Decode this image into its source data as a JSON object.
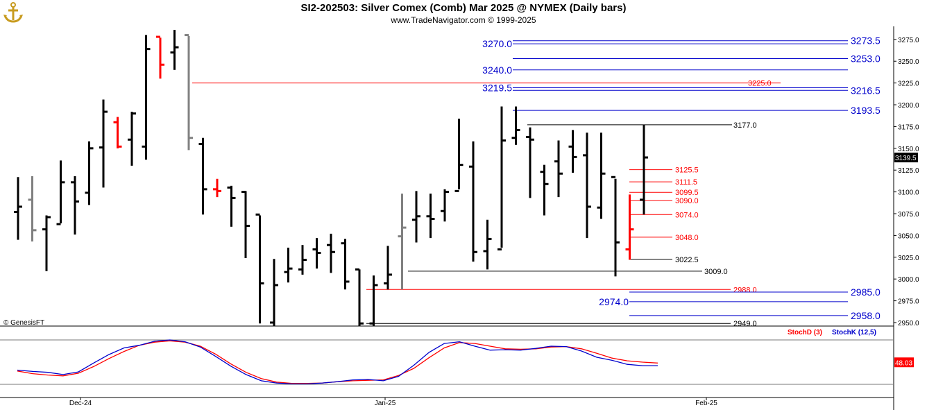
{
  "header": {
    "title": "SI2-202503:  Silver Comex (Comb) Mar 2025 @ NYMEX  (Daily bars)",
    "subtitle": "www.TradeNavigator.com © 1999-2025",
    "watermark": "© GenesisFT"
  },
  "colors": {
    "up": "#000000",
    "down": "#ff0000",
    "flat": "#808080",
    "green": "#00dd00",
    "blue": "#0000cc",
    "red": "#ff0000",
    "black": "#000000"
  },
  "chart_data": {
    "type": "bar",
    "price_axis": {
      "ticks": [
        "3275.0",
        "3250.0",
        "3225.0",
        "3200.0",
        "3175.0",
        "3150.0",
        "3125.0",
        "3100.0",
        "3075.0",
        "3050.0",
        "3025.0",
        "3000.0",
        "2975.0",
        "2950.0"
      ],
      "last_price": "3139.5"
    },
    "date_labels": [
      "Dec-24",
      "Jan-25",
      "Feb-25"
    ],
    "bars": [
      {
        "o": 3077,
        "h": 3117,
        "l": 3045,
        "c": 3083,
        "color": "black",
        "dir": "up"
      },
      {
        "o": 3091,
        "h": 3118,
        "l": 3043,
        "c": 3056,
        "color": "gray",
        "dir": "down"
      },
      {
        "o": 3057,
        "h": 3073,
        "l": 3009,
        "c": 3071,
        "color": "black",
        "dir": "up"
      },
      {
        "o": 3063,
        "h": 3136,
        "l": 3064,
        "c": 3111,
        "color": "black",
        "dir": "up"
      },
      {
        "o": 3111,
        "h": 3118,
        "l": 3051,
        "c": 3089,
        "color": "black",
        "dir": "down"
      },
      {
        "o": 3099,
        "h": 3158,
        "l": 3085,
        "c": 3150,
        "color": "black",
        "dir": "up"
      },
      {
        "o": 3151,
        "h": 3206,
        "l": 3105,
        "c": 3192,
        "color": "black",
        "dir": "up"
      },
      {
        "o": 3180,
        "h": 3186,
        "l": 3150,
        "c": 3152,
        "color": "red",
        "dir": "down"
      },
      {
        "o": 3160,
        "h": 3192,
        "l": 3130,
        "c": 3190,
        "color": "black",
        "dir": "up"
      },
      {
        "o": 3152,
        "h": 3280,
        "l": 3137,
        "c": 3264,
        "color": "black",
        "dir": "up"
      },
      {
        "o": 3278,
        "h": 3277,
        "l": 3230,
        "c": 3246,
        "color": "red",
        "dir": "down"
      },
      {
        "o": 3260,
        "h": 3286,
        "l": 3240,
        "c": 3266,
        "color": "black",
        "dir": "up"
      },
      {
        "o": 3280,
        "h": 3279,
        "l": 3148,
        "c": 3162,
        "color": "gray",
        "dir": "down"
      },
      {
        "o": 3155,
        "h": 3162,
        "l": 3074,
        "c": 3103,
        "color": "black",
        "dir": "down"
      },
      {
        "o": 3103,
        "h": 3115,
        "l": 3094,
        "c": 3101,
        "color": "red",
        "dir": "down"
      },
      {
        "o": 3105,
        "h": 3107,
        "l": 3060,
        "c": 3093,
        "color": "black",
        "dir": "down"
      },
      {
        "o": 3100,
        "h": 3101,
        "l": 3024,
        "c": 3061,
        "color": "black",
        "dir": "down"
      },
      {
        "o": 3074,
        "h": 3073,
        "l": 2949,
        "c": 2995,
        "color": "black",
        "dir": "down"
      },
      {
        "o": 2950,
        "h": 3023,
        "l": 2944,
        "c": 2993,
        "color": "black",
        "dir": "up"
      },
      {
        "o": 3008,
        "h": 3036,
        "l": 2996,
        "c": 3012,
        "color": "black",
        "dir": "up"
      },
      {
        "o": 3011,
        "h": 3039,
        "l": 3005,
        "c": 3022,
        "color": "black",
        "dir": "up"
      },
      {
        "o": 3034,
        "h": 3047,
        "l": 3012,
        "c": 3030,
        "color": "black",
        "dir": "up"
      },
      {
        "o": 3039,
        "h": 3052,
        "l": 3007,
        "c": 3031,
        "color": "black",
        "dir": "up"
      },
      {
        "o": 3041,
        "h": 3046,
        "l": 2988,
        "c": 2997,
        "color": "black",
        "dir": "down"
      },
      {
        "o": 3011,
        "h": 3011,
        "l": 2943,
        "c": 2949,
        "color": "black",
        "dir": "down"
      },
      {
        "o": 2949,
        "h": 3004,
        "l": 2940,
        "c": 2993,
        "color": "black",
        "dir": "up"
      },
      {
        "o": 2995,
        "h": 3038,
        "l": 2988,
        "c": 3005,
        "color": "black",
        "dir": "up"
      },
      {
        "o": 3049,
        "h": 3098,
        "l": 2988,
        "c": 3059,
        "color": "gray",
        "dir": "up"
      },
      {
        "o": 3068,
        "h": 3101,
        "l": 3042,
        "c": 3072,
        "color": "black",
        "dir": "up"
      },
      {
        "o": 3072,
        "h": 3098,
        "l": 3047,
        "c": 3069,
        "color": "black",
        "dir": "up"
      },
      {
        "o": 3078,
        "h": 3103,
        "l": 3066,
        "c": 3100,
        "color": "black",
        "dir": "up"
      },
      {
        "o": 3101,
        "h": 3184,
        "l": 3103,
        "c": 3131,
        "color": "black",
        "dir": "up"
      },
      {
        "o": 3129,
        "h": 3158,
        "l": 3020,
        "c": 3031,
        "color": "black",
        "dir": "down"
      },
      {
        "o": 3032,
        "h": 3068,
        "l": 3011,
        "c": 3046,
        "color": "black",
        "dir": "up"
      },
      {
        "o": 3034,
        "h": 3198,
        "l": 3036,
        "c": 3159,
        "color": "black",
        "dir": "up"
      },
      {
        "o": 3162,
        "h": 3198,
        "l": 3154,
        "c": 3171,
        "color": "black",
        "dir": "up"
      },
      {
        "o": 3163,
        "h": 3174,
        "l": 3093,
        "c": 3160,
        "color": "black",
        "dir": "down"
      },
      {
        "o": 3123,
        "h": 3131,
        "l": 3073,
        "c": 3109,
        "color": "black",
        "dir": "down"
      },
      {
        "o": 3135,
        "h": 3159,
        "l": 3094,
        "c": 3121,
        "color": "black",
        "dir": "down"
      },
      {
        "o": 3152,
        "h": 3171,
        "l": 3122,
        "c": 3140,
        "color": "black",
        "dir": "down"
      },
      {
        "o": 3142,
        "h": 3168,
        "l": 3047,
        "c": 3083,
        "color": "black",
        "dir": "down"
      },
      {
        "o": 3082,
        "h": 3168,
        "l": 3069,
        "c": 3121,
        "color": "black",
        "dir": "up"
      },
      {
        "o": 3117,
        "h": 3115,
        "l": 3003,
        "c": 3042,
        "color": "black",
        "dir": "down"
      },
      {
        "o": 3034,
        "h": 3097,
        "l": 3022,
        "c": 3057,
        "color": "red",
        "dir": "up"
      },
      {
        "o": 3091,
        "h": 3177,
        "l": 3074,
        "c": 3139.5,
        "color": "black",
        "dir": "up"
      }
    ],
    "levels": [
      {
        "value": "3273.5",
        "color": "blue",
        "side": "right"
      },
      {
        "value": "3270.0",
        "color": "blue",
        "side": "left"
      },
      {
        "value": "3253.0",
        "color": "blue",
        "side": "right"
      },
      {
        "value": "3240.0",
        "color": "blue",
        "side": "left"
      },
      {
        "value": "3225.0",
        "color": "red",
        "side": "mid"
      },
      {
        "value": "3219.5",
        "color": "blue",
        "side": "left"
      },
      {
        "value": "3216.5",
        "color": "blue",
        "side": "right"
      },
      {
        "value": "3193.5",
        "color": "blue",
        "side": "right"
      },
      {
        "value": "3177.0",
        "color": "black",
        "side": "mid"
      },
      {
        "value": "3125.5",
        "color": "red",
        "side": "mid"
      },
      {
        "value": "3111.5",
        "color": "red",
        "side": "mid"
      },
      {
        "value": "3099.5",
        "color": "red",
        "side": "mid"
      },
      {
        "value": "3090.0",
        "color": "red",
        "side": "mid"
      },
      {
        "value": "3074.0",
        "color": "red",
        "side": "mid"
      },
      {
        "value": "3048.0",
        "color": "red",
        "side": "mid"
      },
      {
        "value": "3022.5",
        "color": "black",
        "side": "mid"
      },
      {
        "value": "3009.0",
        "color": "black",
        "side": "mid"
      },
      {
        "value": "2988.0",
        "color": "red",
        "side": "mid"
      },
      {
        "value": "2985.0",
        "color": "blue",
        "side": "right"
      },
      {
        "value": "2974.0",
        "color": "blue",
        "side": "left"
      },
      {
        "value": "2958.0",
        "color": "blue",
        "side": "right"
      },
      {
        "value": "2949.0",
        "color": "black",
        "side": "mid"
      }
    ],
    "stochastic": {
      "legend_d": "StochD (3)",
      "legend_k": "StochK (12,5)",
      "last_value": "48.03",
      "range": [
        0,
        100
      ],
      "k": [
        32,
        29,
        27,
        22,
        28,
        48,
        67,
        82,
        88,
        97,
        100,
        96,
        84,
        63,
        41,
        22,
        8,
        3,
        1,
        1,
        3,
        6,
        10,
        11,
        8,
        18,
        43,
        72,
        92,
        96,
        86,
        77,
        78,
        77,
        81,
        86,
        85,
        75,
        61,
        54,
        45,
        42,
        42
      ],
      "d": [
        30,
        24,
        21,
        19,
        25,
        40,
        58,
        74,
        88,
        95,
        98,
        95,
        86,
        68,
        46,
        27,
        13,
        5,
        2,
        2,
        3,
        6,
        8,
        9,
        10,
        20,
        36,
        60,
        82,
        94,
        92,
        86,
        80,
        79,
        80,
        84,
        85,
        80,
        70,
        59,
        53,
        50,
        48
      ]
    }
  }
}
